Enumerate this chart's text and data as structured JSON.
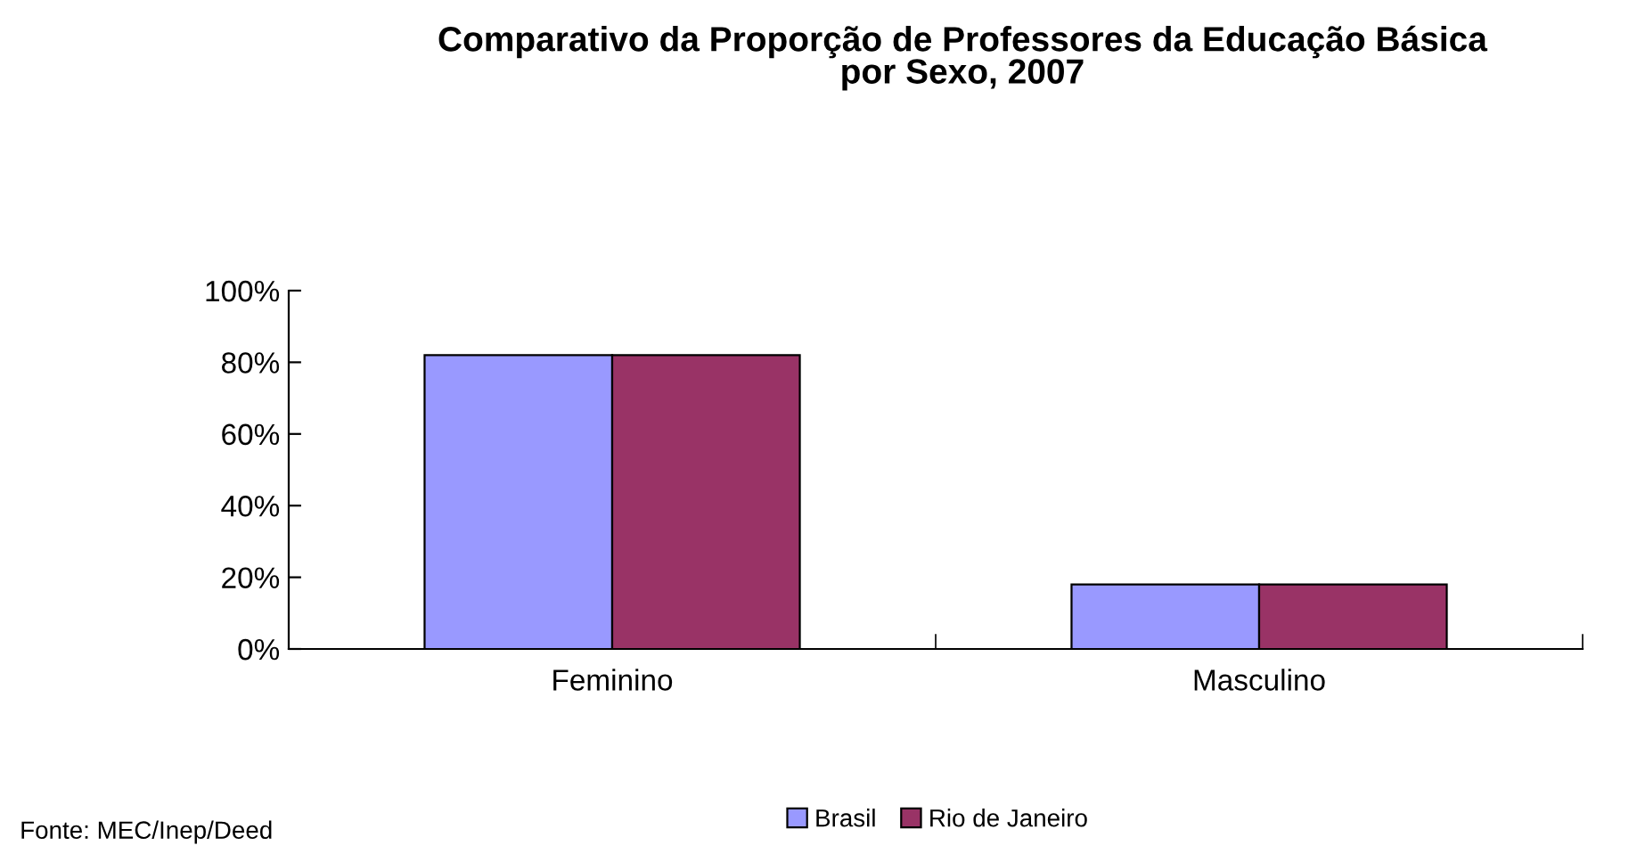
{
  "chart_data": {
    "type": "bar",
    "title": "Comparativo da Proporção de Professores da Educação Básica\npor Sexo, 2007",
    "categories": [
      "Feminino",
      "Masculino"
    ],
    "series": [
      {
        "name": "Brasil",
        "color": "#9999ff",
        "values": [
          82,
          18
        ]
      },
      {
        "name": "Rio de Janeiro",
        "color": "#993366",
        "values": [
          82,
          18
        ]
      }
    ],
    "ylim": [
      0,
      100
    ],
    "yticks": [
      {
        "value": 0,
        "label": "0%"
      },
      {
        "value": 20,
        "label": "20%"
      },
      {
        "value": 40,
        "label": "40%"
      },
      {
        "value": 60,
        "label": "60%"
      },
      {
        "value": 80,
        "label": "80%"
      },
      {
        "value": 100,
        "label": "100%"
      }
    ],
    "grid": false,
    "legend": "bottom",
    "annotations": [
      "Fonte: MEC/Inep/Deed"
    ]
  }
}
